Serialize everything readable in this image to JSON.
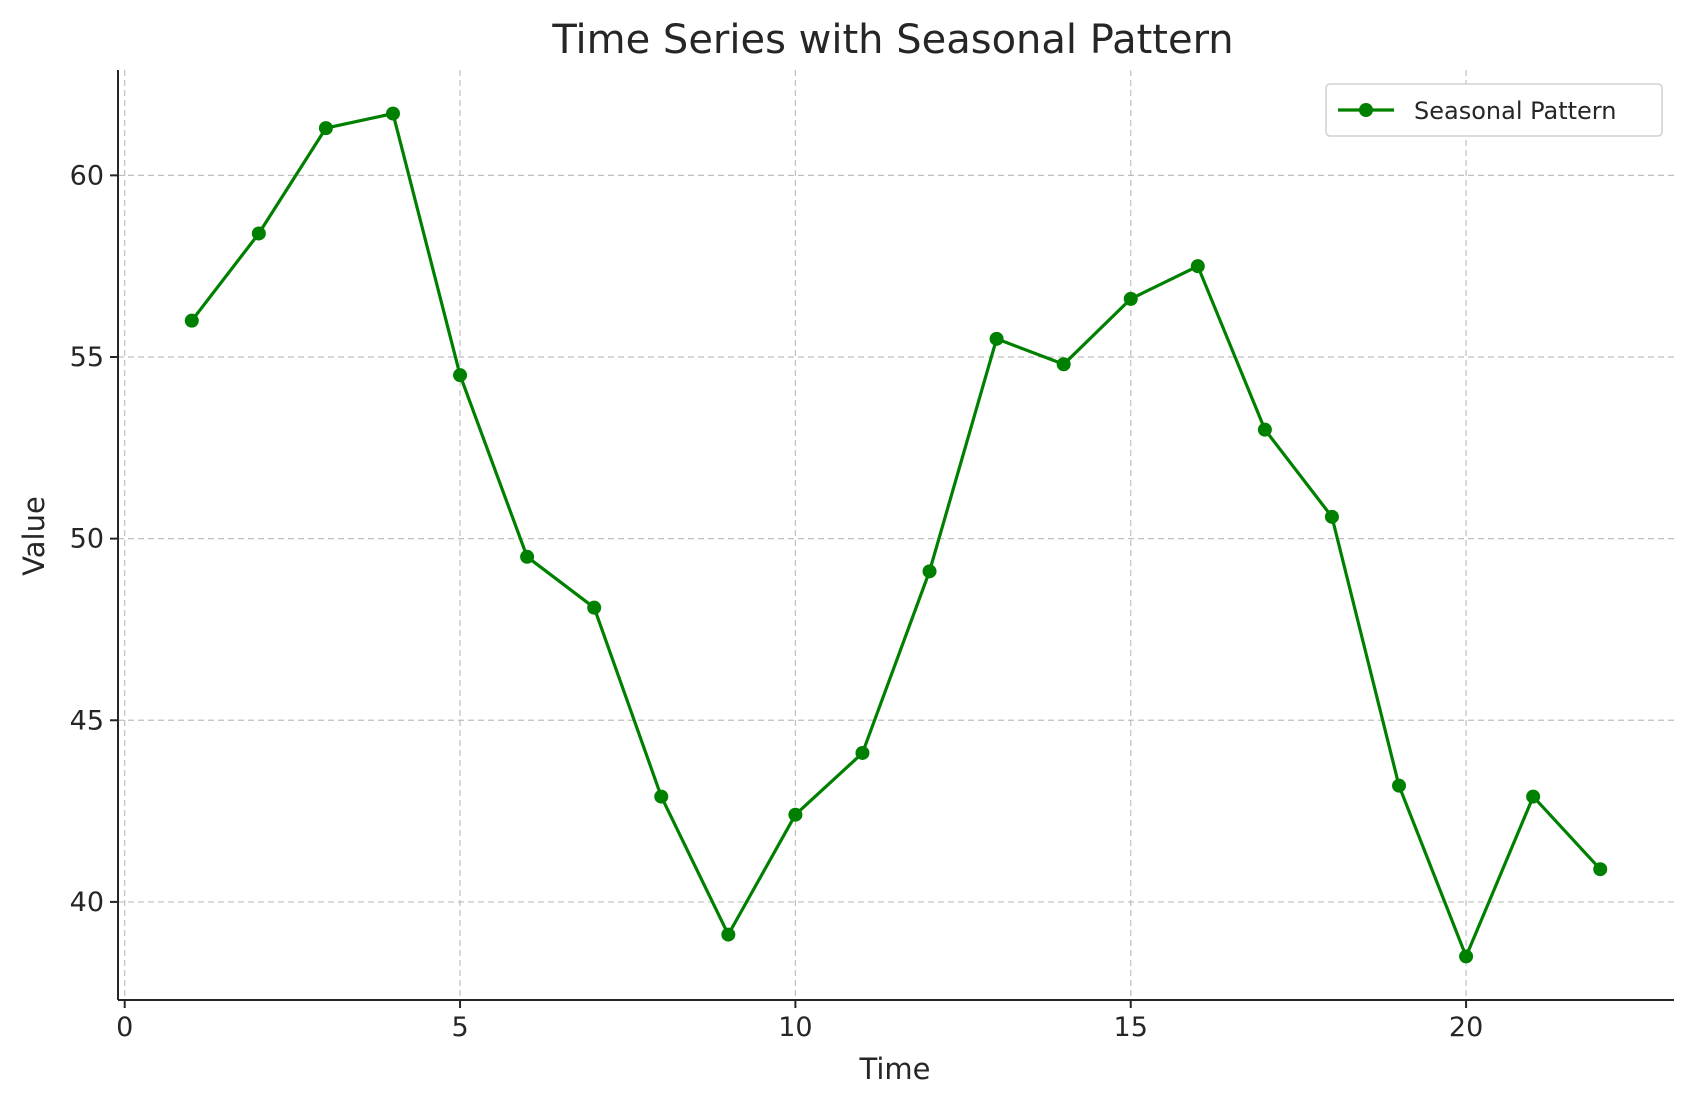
{
  "chart_data": {
    "type": "line",
    "title": "Time Series with Seasonal Pattern",
    "xlabel": "Time",
    "ylabel": "Value",
    "xlim": [
      -0.1,
      23.1
    ],
    "ylim": [
      37.3,
      62.9
    ],
    "xticks": [
      0,
      5,
      10,
      15,
      20
    ],
    "yticks": [
      40,
      45,
      50,
      55,
      60
    ],
    "grid": true,
    "legend_position": "top-right",
    "series": [
      {
        "name": "Seasonal Pattern",
        "color": "#008000",
        "marker": "circle",
        "x": [
          1,
          2,
          3,
          4,
          5,
          6,
          7,
          8,
          9,
          10,
          11,
          12,
          13,
          14,
          15,
          16,
          17,
          18,
          19,
          20,
          21,
          22
        ],
        "values": [
          56.0,
          58.4,
          61.3,
          61.7,
          54.5,
          49.5,
          48.1,
          42.9,
          39.1,
          42.4,
          44.1,
          49.1,
          55.5,
          54.8,
          56.6,
          57.5,
          53.0,
          50.6,
          43.2,
          38.5,
          42.9,
          40.9
        ]
      }
    ]
  }
}
